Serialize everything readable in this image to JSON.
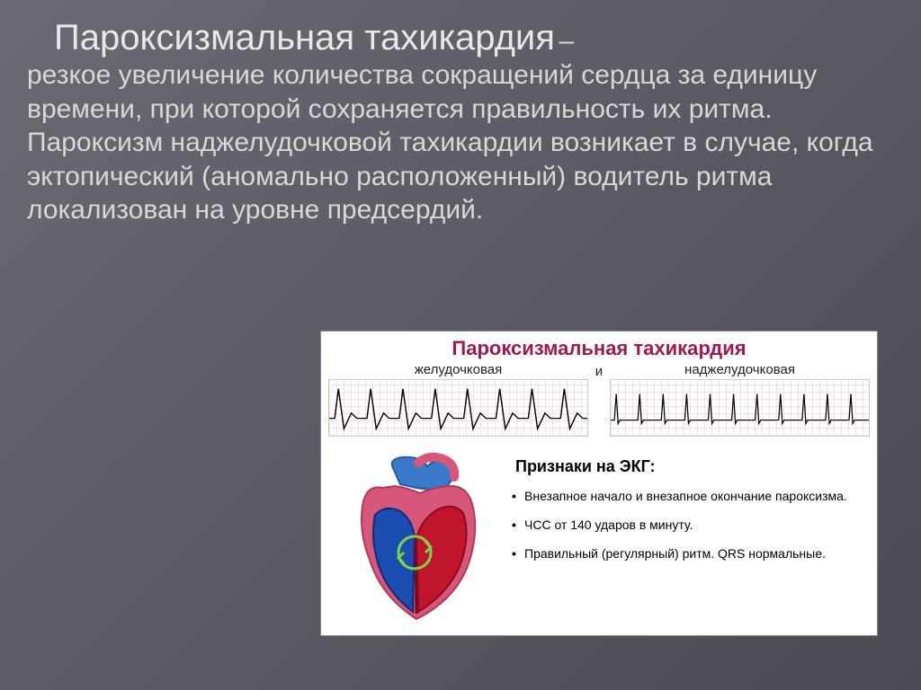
{
  "title": "Пароксизмальная тахикардия",
  "dash": "–",
  "body": "резкое увеличение количества сокращений сердца за единицу времени, при которой сохраняется правильность их ритма. Пароксизм наджелудочковой тахикардии возникает в случае, когда эктопический (аномально расположенный) водитель ритма локализован на уровне предсердий.",
  "figure": {
    "title": "Пароксизмальная тахикардия",
    "title_color": "#a01850",
    "ecg_left_label": "желудочковая",
    "ecg_right_label": "наджелудочковая",
    "ecg_sep": "и",
    "signs_title": "Признаки на ЭКГ:",
    "signs": [
      "Внезапное начало и внезапное окончание пароксизма.",
      "ЧСС  от 140 ударов в минуту.",
      "Правильный (регулярный) ритм. QRS нормальные."
    ],
    "ecg_ventricular": {
      "beats": 8,
      "stroke": "#000000",
      "stroke_width": 1.4
    },
    "ecg_supraventricular": {
      "beats": 11,
      "stroke": "#000000",
      "stroke_width": 1.2
    },
    "heart": {
      "outline": "#d6577a",
      "atrium_fill": "#d6577a",
      "lv_fill": "#c0152a",
      "rv_fill": "#1b4db0",
      "vessel": "#3a7ac8",
      "circle_stroke": "#7dd64a"
    }
  },
  "colors": {
    "slide_text": "#d8d8d8",
    "slide_title": "#e8e8e8"
  }
}
